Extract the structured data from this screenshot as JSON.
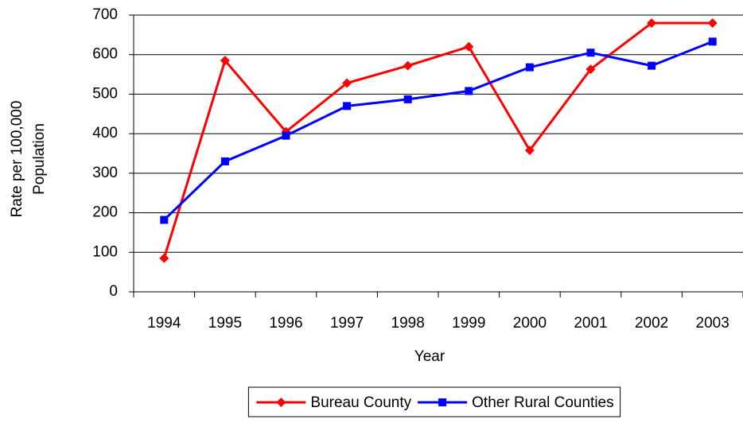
{
  "chart_data": {
    "type": "line",
    "xlabel": "Year",
    "ylabel": [
      "Rate per 100,000",
      "Population"
    ],
    "categories": [
      "1994",
      "1995",
      "1996",
      "1997",
      "1998",
      "1999",
      "2000",
      "2001",
      "2002",
      "2003"
    ],
    "series": [
      {
        "name": "Bureau County",
        "color": "#ff0000",
        "marker": "diamond",
        "values": [
          85,
          585,
          405,
          528,
          572,
          620,
          358,
          563,
          680,
          680
        ]
      },
      {
        "name": "Other Rural Counties",
        "color": "#0000ff",
        "marker": "square",
        "values": [
          182,
          330,
          395,
          470,
          487,
          508,
          568,
          605,
          572,
          633
        ]
      }
    ],
    "ylim": [
      0,
      700
    ],
    "yticks": [
      0,
      100,
      200,
      300,
      400,
      500,
      600,
      700
    ],
    "grid": true,
    "legend": "bottom"
  }
}
